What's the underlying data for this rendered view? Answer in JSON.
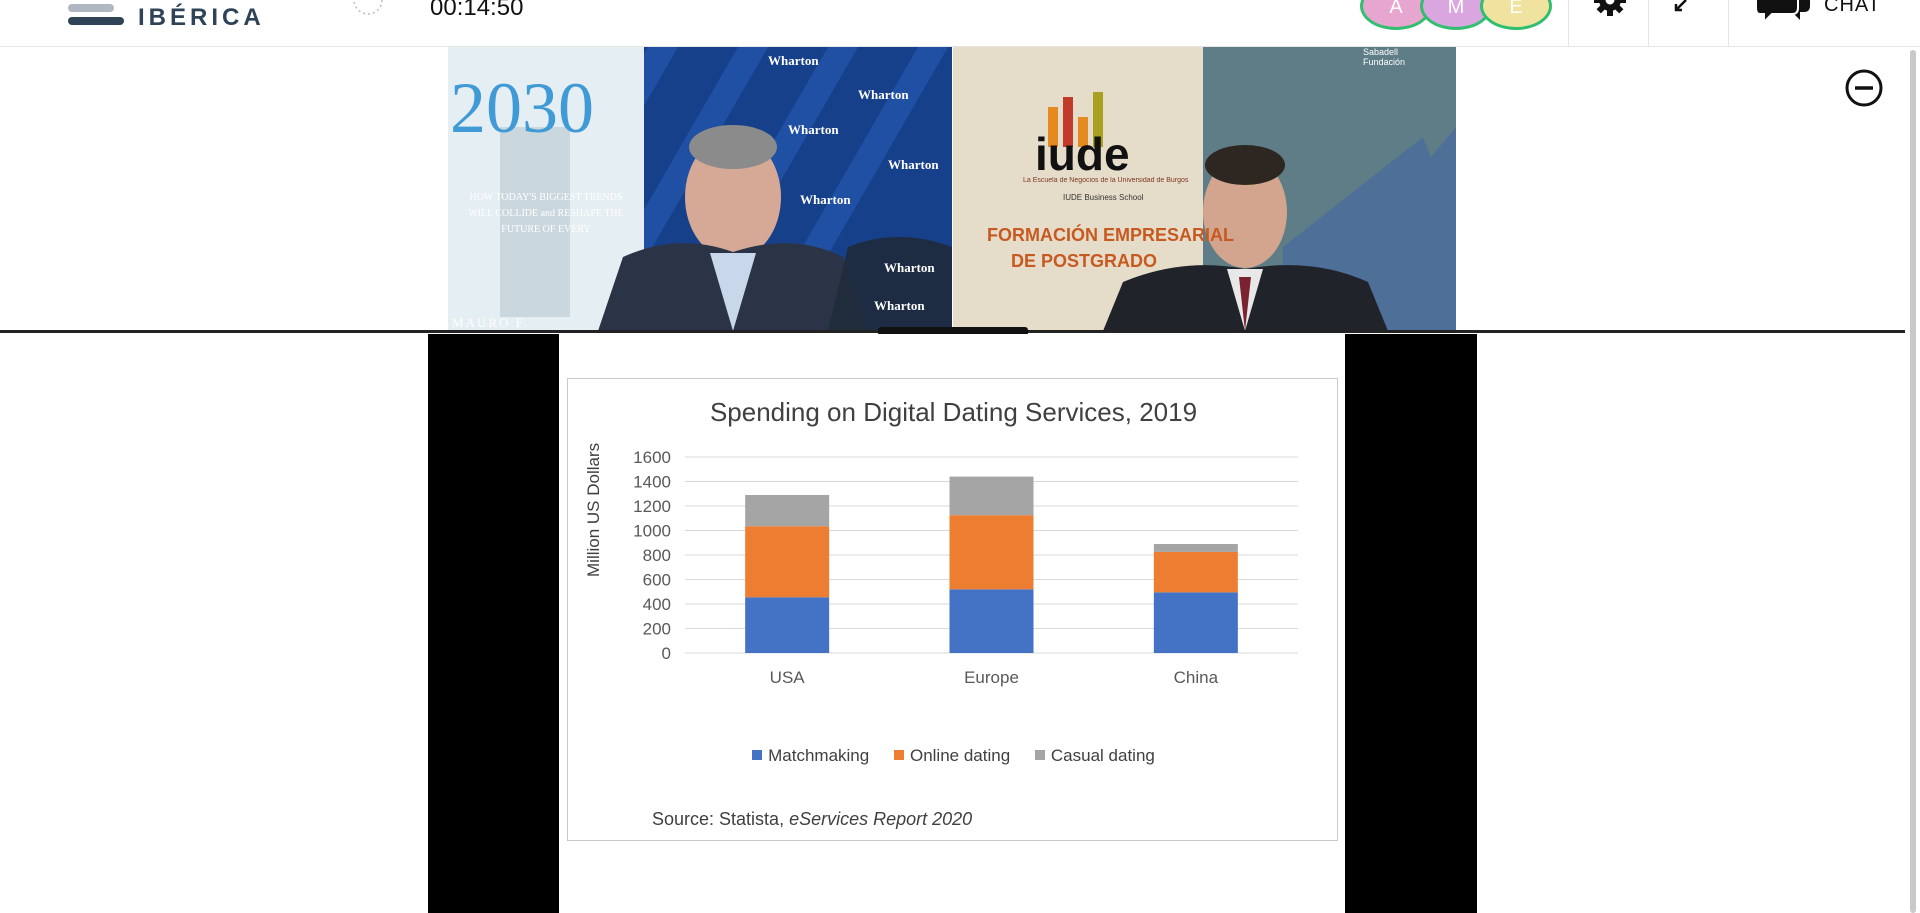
{
  "header": {
    "brand": "IBÉRICA",
    "timer": "00:14:50",
    "participants": [
      {
        "initial": "A",
        "color": "#e7a6cf"
      },
      {
        "initial": "M",
        "color": "#d9a6df"
      },
      {
        "initial": "E",
        "color": "#f0e3a0"
      }
    ],
    "chat_label": "CHAT"
  },
  "video": {
    "left_tile": {
      "book_year": "2030",
      "book_subtitle": "HOW TODAY'S BIGGEST TRENDS WILL COLLIDE and RESHAPE THE FUTURE OF EVERY",
      "book_author": "MAURO F.",
      "backdrop_brand": "Wharton"
    },
    "right_tile": {
      "banner_logo": "iude",
      "banner_tagline": "La Escuela de Negocios de la Universidad de Burgos",
      "banner_school": "IUDE Business School",
      "banner_line1": "FORMACIÓN EMPRESARIAL",
      "banner_line2": "DE POSTGRADO",
      "sponsor": "Sabadell Fundación"
    }
  },
  "slide": {
    "source_prefix": "Source: Statista, ",
    "source_title": "eServices Report 2020"
  },
  "chart_data": {
    "type": "bar",
    "stacked": true,
    "title": "Spending on Digital Dating Services, 2019",
    "xlabel": "",
    "ylabel": "Million US Dollars",
    "ylim": [
      0,
      1600
    ],
    "yticks": [
      0,
      200,
      400,
      600,
      800,
      1000,
      1200,
      1400,
      1600
    ],
    "categories": [
      "USA",
      "Europe",
      "China"
    ],
    "series": [
      {
        "name": "Matchmaking",
        "color": "#4472c4",
        "values": [
          455,
          520,
          495
        ]
      },
      {
        "name": "Online dating",
        "color": "#ed7d31",
        "values": [
          580,
          605,
          330
        ]
      },
      {
        "name": "Casual dating",
        "color": "#a5a5a5",
        "values": [
          255,
          315,
          65
        ]
      }
    ],
    "grid": true,
    "legend": "bottom"
  }
}
